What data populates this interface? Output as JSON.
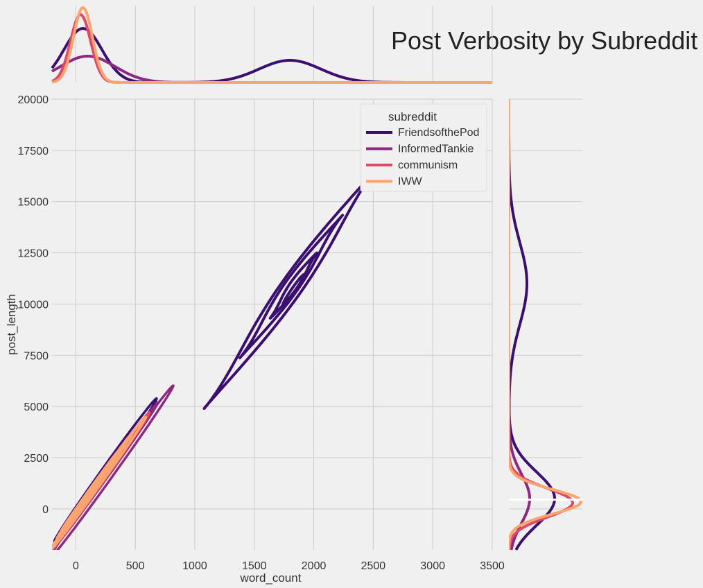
{
  "chart_data": {
    "type": "contour",
    "title": "Post Verbosity by Subreddit",
    "xlabel": "word_count",
    "ylabel": "post_length",
    "xlim": [
      -200,
      3500
    ],
    "ylim": [
      -2000,
      20000
    ],
    "xticks": [
      0,
      500,
      1000,
      1500,
      2000,
      2500,
      3000,
      3500
    ],
    "yticks": [
      0,
      2500,
      5000,
      7500,
      10000,
      12500,
      15000,
      17500,
      20000
    ],
    "grid": true,
    "legend": {
      "title": "subreddit",
      "placement": "top-right"
    },
    "series": [
      {
        "name": "FriendsofthePod",
        "color": "#3b0f6f",
        "center_word_count": 1800,
        "center_post_length": 10800,
        "contour_range_word_count": [
          1090,
          2530
        ],
        "contour_range_post_length": [
          6500,
          15100
        ],
        "marginal_word_count_peaks": [
          60,
          1800
        ],
        "marginal_post_length_peaks": [
          11000,
          0
        ]
      },
      {
        "name": "InformedTankie",
        "color": "#8c2981",
        "contour_range_word_count": [
          -200,
          820
        ],
        "contour_range_post_length": [
          -1200,
          4900
        ],
        "marginal_word_count_peaks": [
          100
        ],
        "marginal_post_length_peaks": [
          500
        ]
      },
      {
        "name": "communism",
        "color": "#de4968",
        "contour_range_word_count": [
          -200,
          650
        ],
        "contour_range_post_length": [
          -1200,
          3800
        ],
        "marginal_word_count_peaks": [
          40
        ],
        "marginal_post_length_peaks": [
          300
        ]
      },
      {
        "name": "IWW",
        "color": "#f8a56f",
        "contour_range_word_count": [
          -200,
          600
        ],
        "contour_range_post_length": [
          -1200,
          3500
        ],
        "marginal_word_count_peaks": [
          60
        ],
        "marginal_post_length_peaks": [
          350
        ]
      }
    ]
  }
}
